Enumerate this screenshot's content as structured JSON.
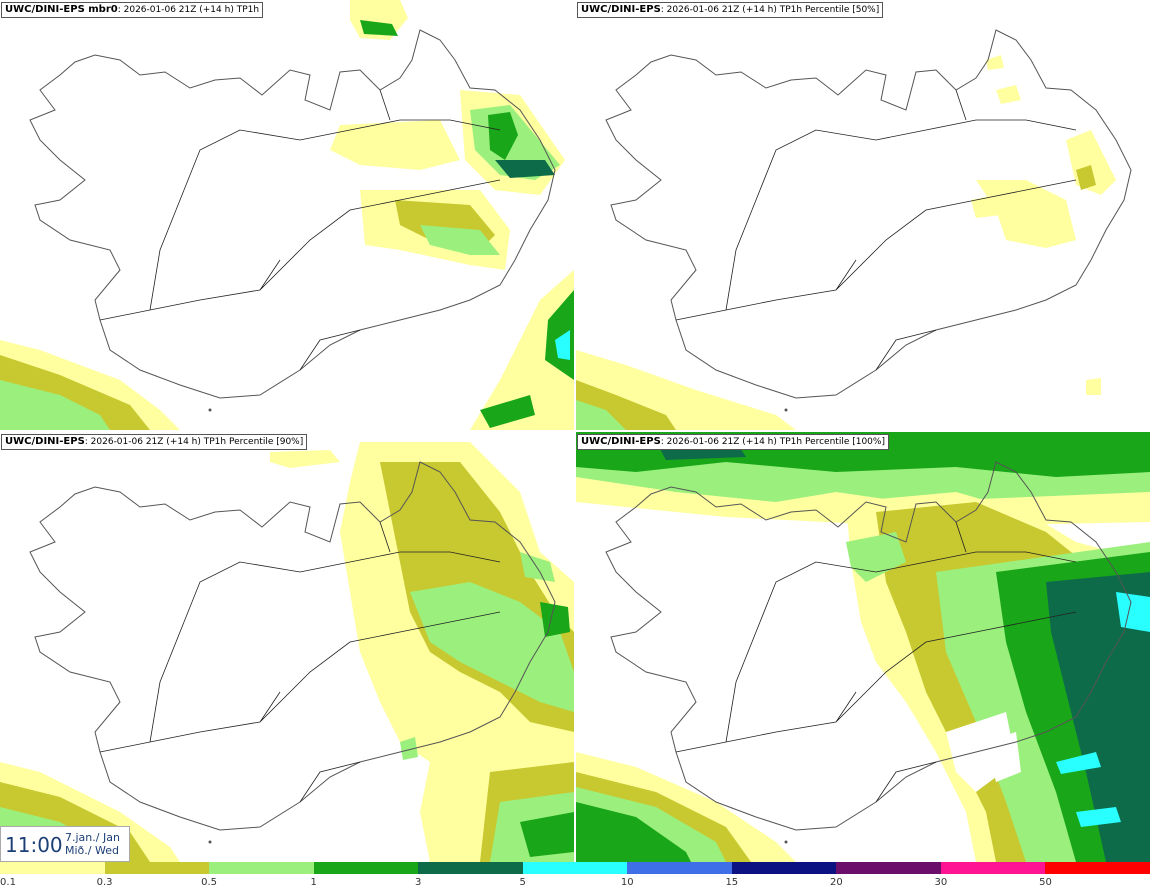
{
  "panels": [
    {
      "title_bold": "UWC/DINI-EPS mbr0",
      "title_rest": ": 2026-01-06 21Z (+14 h) TP1h"
    },
    {
      "title_bold": "UWC/DINI-EPS",
      "title_rest": ": 2026-01-06 21Z (+14 h) TP1h Percentile [50%]"
    },
    {
      "title_bold": "UWC/DINI-EPS",
      "title_rest": ": 2026-01-06 21Z (+14 h) TP1h Percentile [90%]"
    },
    {
      "title_bold": "UWC/DINI-EPS",
      "title_rest": ": 2026-01-06 21Z (+14 h) TP1h Percentile [100%]"
    }
  ],
  "time": {
    "clock": "11:00",
    "date_line1": "7.jan./ Jan",
    "date_line2": "Mið./ Wed"
  },
  "legend": {
    "labels": [
      "0.1",
      "0.3",
      "0.5",
      "1",
      "3",
      "5",
      "10",
      "15",
      "20",
      "30",
      "50"
    ],
    "colors": [
      "#ffff9f",
      "#c8c830",
      "#9bf07d",
      "#19a619",
      "#0d6b4a",
      "#2affff",
      "#3f6fe8",
      "#0c1282",
      "#6b0e6b",
      "#ff1493",
      "#ff0000"
    ]
  },
  "colors": {
    "coast": "#555555",
    "roads": "#222222"
  }
}
